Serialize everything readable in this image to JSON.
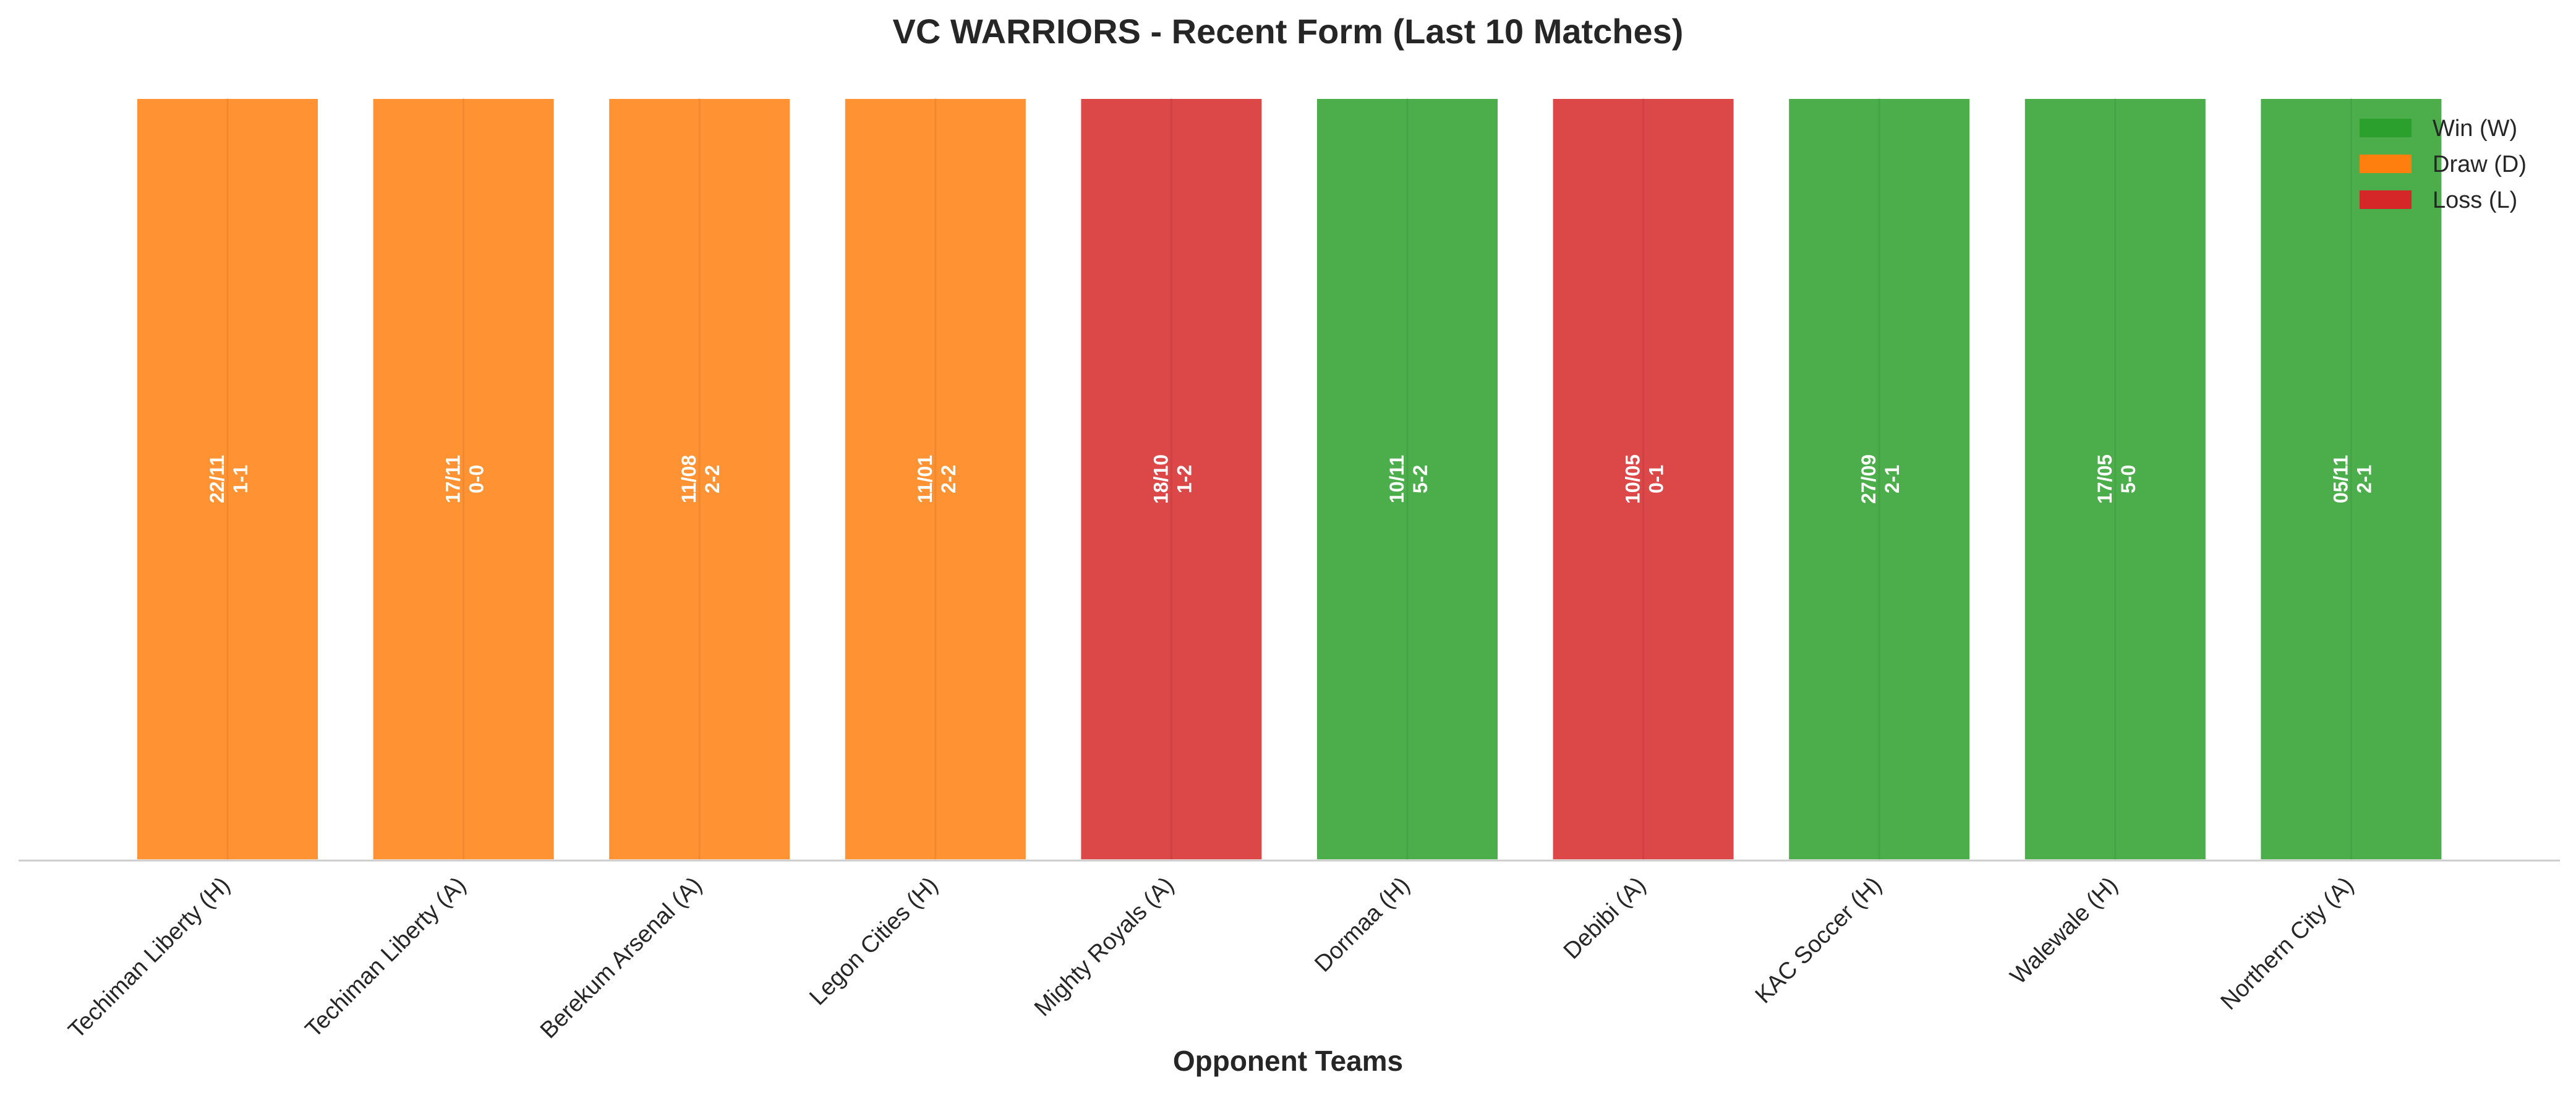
{
  "chart_data": {
    "type": "bar",
    "title": "VC WARRIORS - Recent Form (Last 10 Matches)",
    "xlabel": "Opponent Teams",
    "ylabel": "",
    "ylim": [
      0,
      1
    ],
    "grid": false,
    "legend_position": "top-right",
    "categories": [
      "Techiman Liberty (H)",
      "Techiman Liberty (A)",
      "Berekum Arsenal (A)",
      "Legon Cities (H)",
      "Mighty Royals (A)",
      "Dormaa (H)",
      "Debibi (A)",
      "KAC Soccer (H)",
      "Walewale (H)",
      "Northern City (A)"
    ],
    "values": [
      1,
      1,
      1,
      1,
      1,
      1,
      1,
      1,
      1,
      1
    ],
    "results": [
      "D",
      "D",
      "D",
      "D",
      "L",
      "W",
      "L",
      "W",
      "W",
      "W"
    ],
    "dates": [
      "22/11",
      "17/11",
      "11/08",
      "11/01",
      "18/10",
      "10/11",
      "10/05",
      "27/09",
      "17/05",
      "05/11"
    ],
    "scores": [
      "1-1",
      "0-0",
      "2-2",
      "2-2",
      "1-2",
      "5-2",
      "0-1",
      "2-1",
      "5-0",
      "2-1"
    ],
    "legend": [
      {
        "key": "W",
        "label": "Win (W)",
        "color": "#2ca02c"
      },
      {
        "key": "D",
        "label": "Draw (D)",
        "color": "#ff7f0e"
      },
      {
        "key": "L",
        "label": "Loss (L)",
        "color": "#d62728"
      }
    ]
  }
}
